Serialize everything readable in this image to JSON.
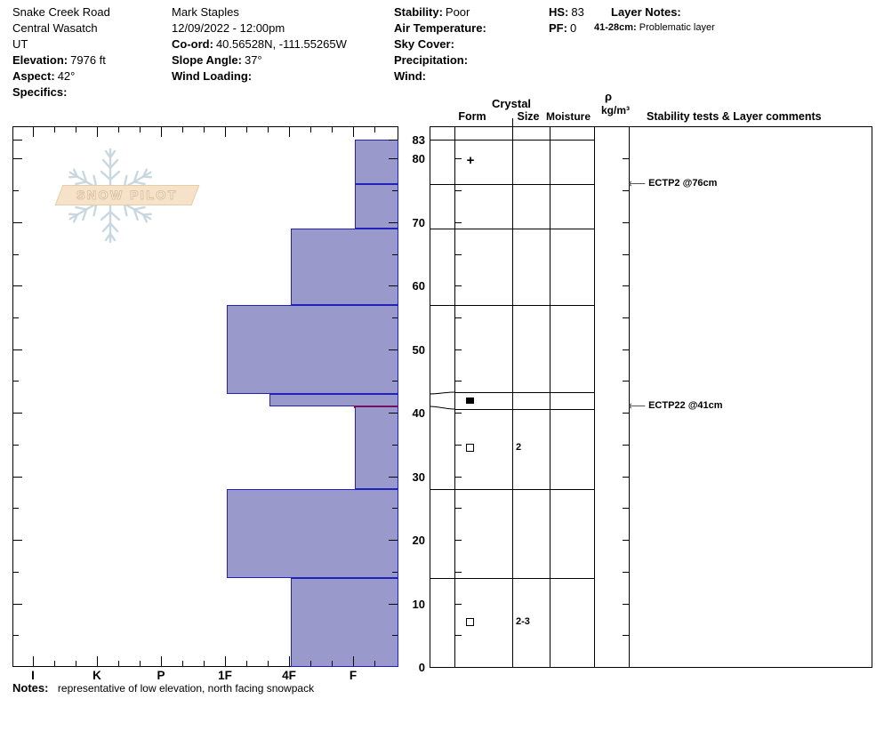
{
  "page_title": "SnowPilot Snow Profile",
  "header": {
    "col1": [
      {
        "label": "",
        "value": "Snake Creek Road"
      },
      {
        "label": "",
        "value": "Central Wasatch"
      },
      {
        "label": "",
        "value": "UT"
      },
      {
        "label": "Elevation:",
        "value": "7976 ft"
      },
      {
        "label": "Aspect:",
        "value": "42°"
      },
      {
        "label": "Specifics:",
        "value": ""
      }
    ],
    "col2": [
      {
        "label": "",
        "value": "Mark Staples"
      },
      {
        "label": "",
        "value": "12/09/2022 - 12:00pm"
      },
      {
        "label": "Co-ord:",
        "value": "40.56528N, -111.55265W"
      },
      {
        "label": "Slope Angle:",
        "value": "37°"
      },
      {
        "label": "Wind Loading:",
        "value": ""
      }
    ],
    "col3": [
      {
        "label": "Stability:",
        "value": "Poor"
      },
      {
        "label": "Air Temperature:",
        "value": ""
      },
      {
        "label": "Sky Cover:",
        "value": ""
      },
      {
        "label": "Precipitation:",
        "value": ""
      },
      {
        "label": "Wind:",
        "value": ""
      }
    ],
    "col4": [
      {
        "label": "HS:",
        "value": "83"
      },
      {
        "label": "PF:",
        "value": "0"
      }
    ],
    "layer_notes": {
      "label": "Layer Notes:",
      "entry_label": "41-28cm:",
      "entry_text": "Problematic layer"
    }
  },
  "logo": {
    "text": "SNOW PILOT"
  },
  "chart_data": {
    "type": "bar",
    "orientation": "horizontal-hardness-profile",
    "x_categories": [
      "I",
      "K",
      "P",
      "1F",
      "4F",
      "F"
    ],
    "depth_axis_label_values": [
      83,
      80,
      70,
      60,
      50,
      40,
      30,
      20,
      10,
      0
    ],
    "ylim": [
      0,
      83
    ],
    "snow_height_cm": 83,
    "layers": [
      {
        "top_cm": 83,
        "bottom_cm": 76,
        "hardness": "F",
        "form_symbol": "plus",
        "grain_size_mm": ""
      },
      {
        "top_cm": 76,
        "bottom_cm": 69,
        "hardness": "F",
        "form_symbol": "",
        "grain_size_mm": ""
      },
      {
        "top_cm": 69,
        "bottom_cm": 57,
        "hardness": "4F",
        "form_symbol": "",
        "grain_size_mm": ""
      },
      {
        "top_cm": 57,
        "bottom_cm": 43,
        "hardness": "1F",
        "form_symbol": "",
        "grain_size_mm": ""
      },
      {
        "top_cm": 43,
        "bottom_cm": 41,
        "hardness": "4F+",
        "form_symbol": "filled-square",
        "grain_size_mm": "",
        "problematic_interface_below": true
      },
      {
        "top_cm": 41,
        "bottom_cm": 28,
        "hardness": "F",
        "form_symbol": "open-square",
        "grain_size_mm": "2"
      },
      {
        "top_cm": 28,
        "bottom_cm": 14,
        "hardness": "1F",
        "form_symbol": "",
        "grain_size_mm": ""
      },
      {
        "top_cm": 14,
        "bottom_cm": 0,
        "hardness": "4F",
        "form_symbol": "open-square",
        "grain_size_mm": "2-3"
      }
    ],
    "stability_tests": [
      {
        "label": "ECTP2 @76cm",
        "depth_cm": 76
      },
      {
        "label": "ECTP22 @41cm",
        "depth_cm": 41
      }
    ],
    "colors": {
      "bar_fill": "#9999cc",
      "bar_border": "#2222bb",
      "problematic_layer": "#c00000"
    }
  },
  "table": {
    "headers": {
      "crystal": "Crystal",
      "form": "Form",
      "size": "Size",
      "moisture": "Moisture",
      "rho": "ρ",
      "rho_units": "kg/m³",
      "stability": "Stability tests & Layer comments"
    }
  },
  "notes": {
    "label": "Notes:",
    "value": "representative of low elevation, north facing snowpack"
  }
}
